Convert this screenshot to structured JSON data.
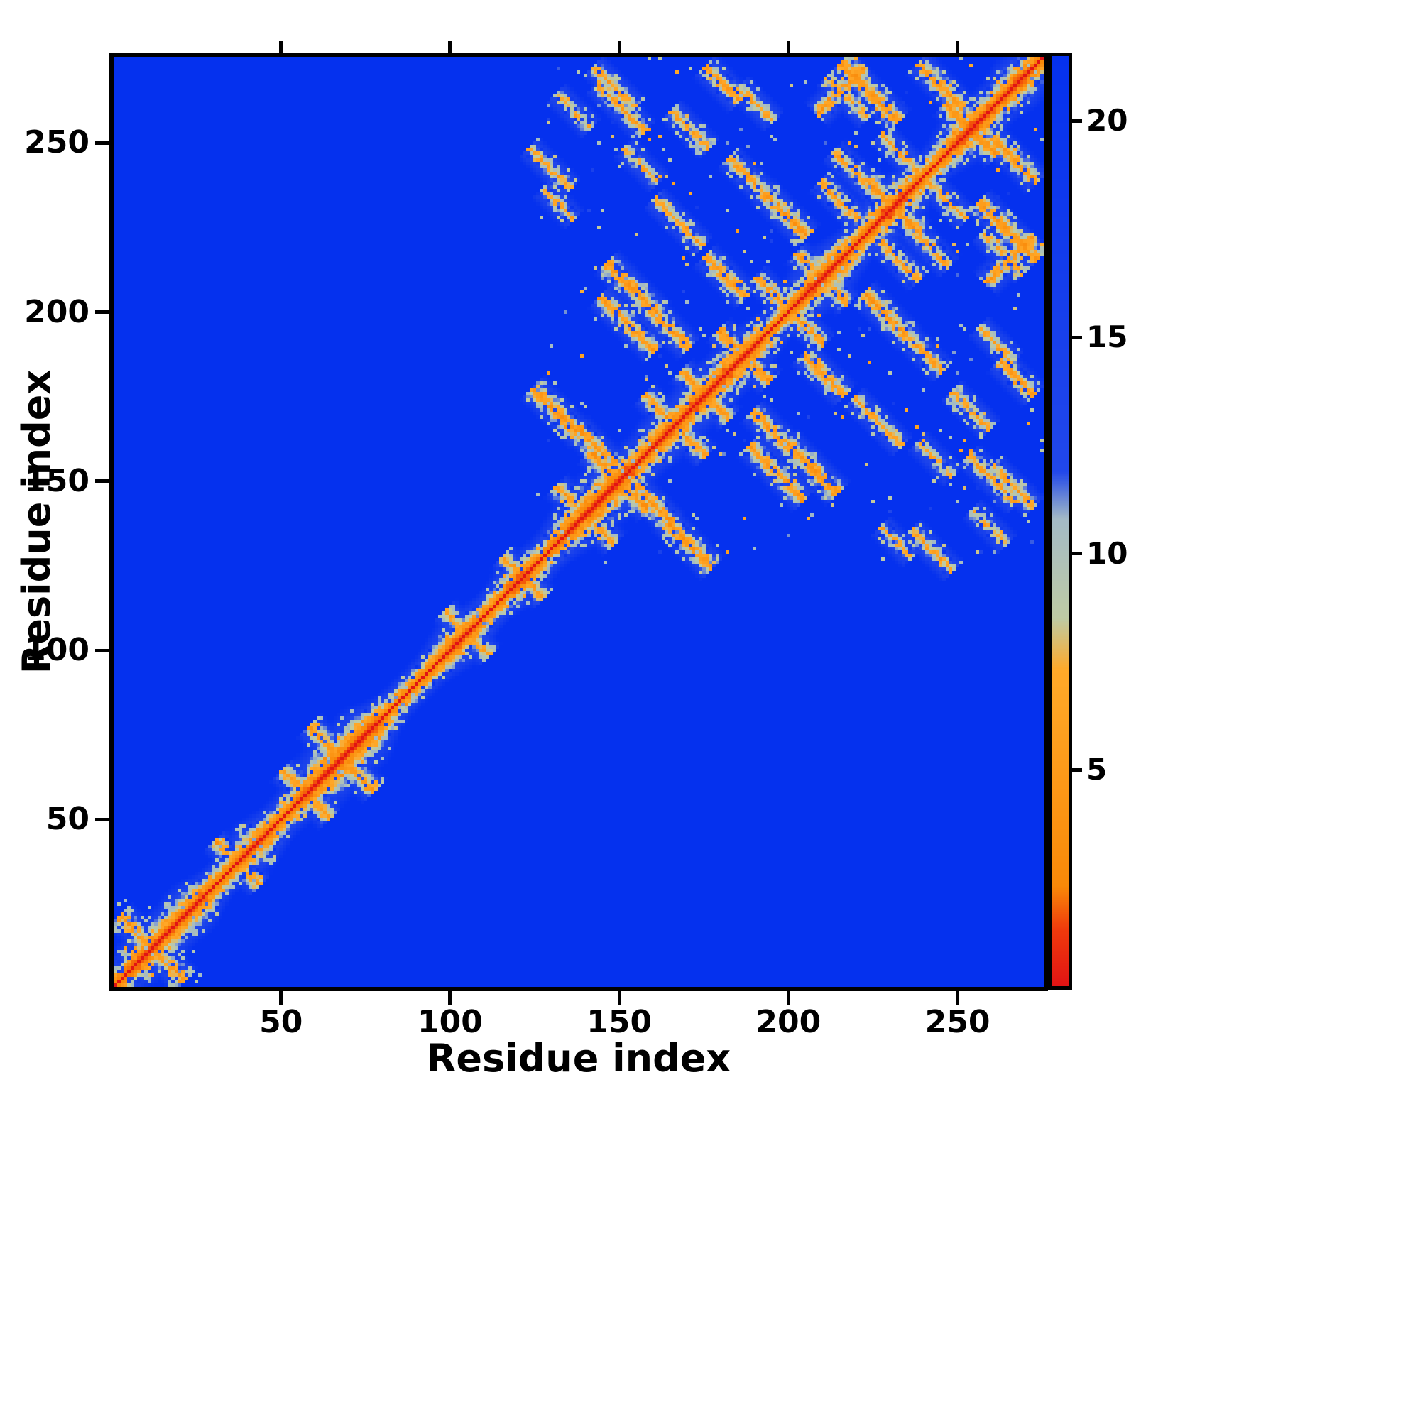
{
  "figure": {
    "background": "#ffffff",
    "xlabel": "Residue index",
    "ylabel": "Residue index"
  },
  "chart_data": {
    "type": "heatmap",
    "title": "",
    "xlabel": "Residue index",
    "ylabel": "Residue index",
    "description": "Symmetric protein residue-residue distance map. Red main diagonal (zero distance), orange/teal band of sequence-local contacts along the diagonal, anti-diagonal and parallel off-diagonal contact streaks concentrated among residues ~125-275, and a small anti-diagonal hairpin cross near the N-terminus. Background is uniform blue (distances above ~12).",
    "n_residues": 275,
    "x_ticks": [
      50,
      100,
      150,
      200,
      250
    ],
    "y_ticks": [
      50,
      100,
      150,
      200,
      250
    ],
    "colorbar": {
      "ticks": [
        5,
        10,
        15,
        20
      ],
      "vmin": 0,
      "vmax": 21.5,
      "units": "distance"
    },
    "colormap_stops": [
      {
        "v": 0.0,
        "color": "#e11414"
      },
      {
        "v": 1.3,
        "color": "#ef3a0c"
      },
      {
        "v": 2.3,
        "color": "#f98908"
      },
      {
        "v": 7.3,
        "color": "#ffa929"
      },
      {
        "v": 8.5,
        "color": "#bfcba4"
      },
      {
        "v": 10.8,
        "color": "#a3bac6"
      },
      {
        "v": 11.9,
        "color": "#2147ea"
      },
      {
        "v": 21.5,
        "color": "#0531ee"
      }
    ],
    "diagonal_band": {
      "coeff": 2.6,
      "max_sep": 14
    },
    "band_bumps": [
      {
        "c": 12,
        "s": 8,
        "amp": 0.6
      },
      {
        "c": 24,
        "s": 5,
        "amp": 0.5
      },
      {
        "c": 42,
        "s": 6,
        "amp": 0.5
      },
      {
        "c": 64,
        "s": 9,
        "amp": 0.8
      },
      {
        "c": 75,
        "s": 5,
        "amp": 0.6
      },
      {
        "c": 103,
        "s": 6,
        "amp": 0.5
      },
      {
        "c": 121,
        "s": 5,
        "amp": 0.5
      },
      {
        "c": 140,
        "s": 8,
        "amp": 0.7
      },
      {
        "c": 150,
        "s": 6,
        "amp": 0.6
      },
      {
        "c": 163,
        "s": 6,
        "amp": 0.5
      },
      {
        "c": 175,
        "s": 6,
        "amp": 0.6
      },
      {
        "c": 187,
        "s": 6,
        "amp": 0.6
      },
      {
        "c": 210,
        "s": 8,
        "amp": 0.7
      },
      {
        "c": 231,
        "s": 7,
        "amp": 0.7
      },
      {
        "c": 254,
        "s": 7,
        "amp": 0.7
      },
      {
        "c": 268,
        "s": 5,
        "amp": 0.6
      }
    ],
    "segment_format": "[i_start, j_start, length, direction(-1=antiparallel,+1=parallel), core_distance]",
    "contact_segments": [
      [
        3,
        21,
        18,
        -1,
        4.6
      ],
      [
        31,
        43,
        10,
        -1,
        6.0
      ],
      [
        51,
        64,
        9,
        -1,
        5.2
      ],
      [
        59,
        77,
        18,
        -1,
        4.8
      ],
      [
        99,
        111,
        7,
        -1,
        6.0
      ],
      [
        116,
        127,
        7,
        -1,
        6.0
      ],
      [
        125,
        177,
        13,
        -1,
        4.6
      ],
      [
        138,
        165,
        10,
        -1,
        5.0
      ],
      [
        142,
        158,
        16,
        -1,
        4.6
      ],
      [
        132,
        148,
        9,
        -1,
        5.2
      ],
      [
        147,
        214,
        14,
        -1,
        4.6
      ],
      [
        160,
        200,
        10,
        -1,
        5.2
      ],
      [
        180,
        194,
        14,
        -1,
        4.8
      ],
      [
        145,
        204,
        15,
        -1,
        5.2
      ],
      [
        176,
        216,
        11,
        -1,
        5.0
      ],
      [
        193,
        235,
        12,
        -1,
        4.8
      ],
      [
        216,
        273,
        16,
        -1,
        4.6
      ],
      [
        176,
        272,
        9,
        -1,
        5.2
      ],
      [
        224,
        238,
        14,
        -1,
        4.8
      ],
      [
        247,
        261,
        14,
        -1,
        4.6
      ],
      [
        209,
        259,
        13,
        1,
        5.0
      ],
      [
        161,
        233,
        13,
        -1,
        6.5
      ],
      [
        144,
        267,
        13,
        -1,
        6.0
      ],
      [
        124,
        248,
        11,
        -1,
        7.0
      ],
      [
        183,
        245,
        10,
        -1,
        6.0
      ],
      [
        166,
        259,
        10,
        -1,
        6.5
      ],
      [
        132,
        264,
        9,
        -1,
        7.5
      ],
      [
        143,
        272,
        11,
        -1,
        6.5
      ],
      [
        239,
        273,
        12,
        -1,
        5.2
      ],
      [
        203,
        217,
        14,
        -1,
        5.5
      ],
      [
        169,
        182,
        13,
        -1,
        5.2
      ],
      [
        210,
        238,
        10,
        -1,
        6.0
      ],
      [
        212,
        269,
        11,
        -1,
        6.5
      ],
      [
        214,
        247,
        12,
        -1,
        6.0
      ],
      [
        191,
        210,
        10,
        -1,
        6.0
      ],
      [
        228,
        252,
        11,
        -1,
        6.3
      ],
      [
        158,
        175,
        9,
        -1,
        5.8
      ],
      [
        186,
        266,
        9,
        -1,
        6.8
      ],
      [
        152,
        248,
        9,
        -1,
        7.2
      ],
      [
        128,
        236,
        8,
        -1,
        7.5
      ]
    ],
    "speckle_region_format": "[i0, i1, j0, j1, density, d_base, d_spread]",
    "speckle_regions": [
      [
        126,
        275,
        126,
        275,
        0.014,
        9.5,
        3.0
      ],
      [
        1,
        26,
        1,
        26,
        0.03,
        8.5,
        2.5
      ]
    ],
    "noise": {
      "amp": 1.9,
      "dropout_p": 0.13,
      "dropout_add": 5.8,
      "pop_p": 0.07,
      "pop_sub": 2.8,
      "fringe_p": 0.18
    },
    "seed": 42
  }
}
